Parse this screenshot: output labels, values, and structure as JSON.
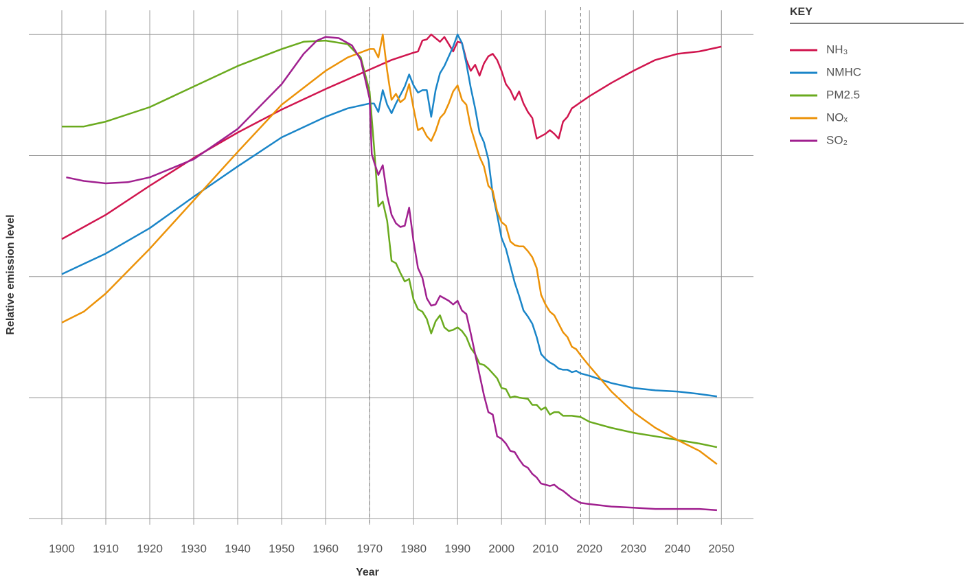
{
  "chart_data": {
    "type": "line",
    "x_label": "Year",
    "y_label": "Relative emission level",
    "legend_title": "KEY",
    "legend": "right",
    "xlim": [
      1892.5,
      2057.3
    ],
    "ylim": [
      -0.05,
      4.2
    ],
    "xticks": [
      1900,
      1910,
      1920,
      1930,
      1940,
      1950,
      1960,
      1970,
      1980,
      1990,
      2000,
      2010,
      2020,
      2030,
      2040,
      2050
    ],
    "yticks": [
      0,
      1,
      2,
      3,
      4
    ],
    "grid": true,
    "reference_lines": [
      1970,
      2018
    ],
    "series": [
      {
        "name": "NH₃",
        "color": "#d0154e",
        "x": [
          1900,
          1910,
          1920,
          1930,
          1940,
          1950,
          1960,
          1970,
          1975,
          1980,
          1981,
          1982,
          1983,
          1984,
          1985,
          1986,
          1987,
          1988,
          1989,
          1990,
          1991,
          1992,
          1993,
          1994,
          1995,
          1996,
          1997,
          1998,
          1999,
          2000,
          2001,
          2002,
          2003,
          2004,
          2005,
          2006,
          2007,
          2008,
          2009,
          2010,
          2011,
          2012,
          2013,
          2014,
          2015,
          2016,
          2018,
          2020,
          2025,
          2030,
          2035,
          2040,
          2045,
          2050
        ],
        "values": [
          2.31,
          2.51,
          2.75,
          2.98,
          3.19,
          3.38,
          3.55,
          3.71,
          3.79,
          3.85,
          3.86,
          3.95,
          3.96,
          4.0,
          3.97,
          3.94,
          3.98,
          3.92,
          3.86,
          3.94,
          3.93,
          3.79,
          3.7,
          3.75,
          3.66,
          3.76,
          3.82,
          3.84,
          3.79,
          3.7,
          3.59,
          3.54,
          3.46,
          3.53,
          3.43,
          3.36,
          3.31,
          3.14,
          3.16,
          3.18,
          3.21,
          3.18,
          3.14,
          3.28,
          3.32,
          3.39,
          3.44,
          3.49,
          3.6,
          3.7,
          3.79,
          3.84,
          3.86,
          3.9
        ]
      },
      {
        "name": "NMHC",
        "color": "#1a85c8",
        "x": [
          1900,
          1910,
          1920,
          1930,
          1940,
          1950,
          1960,
          1965,
          1970,
          1971,
          1972,
          1973,
          1974,
          1975,
          1976,
          1977,
          1978,
          1979,
          1980,
          1981,
          1982,
          1983,
          1984,
          1985,
          1986,
          1987,
          1988,
          1989,
          1990,
          1991,
          1992,
          1993,
          1994,
          1995,
          1996,
          1997,
          1998,
          1999,
          2000,
          2001,
          2002,
          2003,
          2004,
          2005,
          2006,
          2007,
          2008,
          2009,
          2010,
          2011,
          2012,
          2013,
          2014,
          2015,
          2016,
          2017,
          2018,
          2020,
          2025,
          2030,
          2035,
          2040,
          2045,
          2049
        ],
        "values": [
          2.02,
          2.19,
          2.4,
          2.66,
          2.91,
          3.15,
          3.32,
          3.39,
          3.43,
          3.43,
          3.36,
          3.54,
          3.42,
          3.35,
          3.43,
          3.5,
          3.57,
          3.67,
          3.58,
          3.52,
          3.54,
          3.54,
          3.32,
          3.54,
          3.68,
          3.74,
          3.82,
          3.9,
          4.0,
          3.93,
          3.76,
          3.56,
          3.39,
          3.19,
          3.11,
          2.97,
          2.68,
          2.51,
          2.32,
          2.23,
          2.09,
          1.95,
          1.84,
          1.72,
          1.67,
          1.61,
          1.5,
          1.36,
          1.32,
          1.29,
          1.27,
          1.24,
          1.23,
          1.23,
          1.21,
          1.22,
          1.2,
          1.18,
          1.12,
          1.08,
          1.06,
          1.05,
          1.03,
          1.01
        ]
      },
      {
        "name": "PM2.5",
        "color": "#6aaa1e",
        "x": [
          1900,
          1905,
          1910,
          1920,
          1930,
          1940,
          1950,
          1955,
          1960,
          1965,
          1968,
          1970,
          1971,
          1972,
          1973,
          1974,
          1975,
          1976,
          1977,
          1978,
          1979,
          1980,
          1981,
          1982,
          1983,
          1984,
          1985,
          1986,
          1987,
          1988,
          1989,
          1990,
          1991,
          1992,
          1993,
          1994,
          1995,
          1996,
          1997,
          1998,
          1999,
          2000,
          2001,
          2002,
          2003,
          2004,
          2006,
          2007,
          2008,
          2009,
          2010,
          2011,
          2012,
          2013,
          2014,
          2016,
          2018,
          2020,
          2025,
          2030,
          2035,
          2040,
          2045,
          2049
        ],
        "values": [
          3.24,
          3.24,
          3.28,
          3.4,
          3.57,
          3.74,
          3.88,
          3.94,
          3.95,
          3.92,
          3.81,
          3.53,
          3.08,
          2.58,
          2.62,
          2.46,
          2.13,
          2.11,
          2.03,
          1.96,
          1.98,
          1.81,
          1.73,
          1.71,
          1.65,
          1.53,
          1.63,
          1.68,
          1.58,
          1.55,
          1.56,
          1.58,
          1.55,
          1.5,
          1.41,
          1.36,
          1.28,
          1.27,
          1.24,
          1.2,
          1.16,
          1.08,
          1.07,
          1.0,
          1.01,
          1.0,
          0.99,
          0.94,
          0.94,
          0.9,
          0.92,
          0.86,
          0.88,
          0.88,
          0.85,
          0.85,
          0.84,
          0.8,
          0.75,
          0.71,
          0.68,
          0.65,
          0.62,
          0.59
        ]
      },
      {
        "name": "NOₓ",
        "color": "#ec9208",
        "x": [
          1900,
          1905,
          1910,
          1920,
          1930,
          1940,
          1950,
          1960,
          1965,
          1970,
          1971,
          1972,
          1973,
          1974,
          1975,
          1976,
          1977,
          1978,
          1979,
          1980,
          1981,
          1982,
          1983,
          1984,
          1985,
          1986,
          1987,
          1988,
          1989,
          1990,
          1991,
          1992,
          1993,
          1994,
          1995,
          1996,
          1997,
          1998,
          1999,
          2000,
          2001,
          2002,
          2003,
          2004,
          2005,
          2006,
          2007,
          2008,
          2009,
          2010,
          2011,
          2012,
          2013,
          2014,
          2015,
          2016,
          2017,
          2018,
          2020,
          2025,
          2030,
          2035,
          2040,
          2045,
          2049
        ],
        "values": [
          1.62,
          1.71,
          1.86,
          2.23,
          2.63,
          3.03,
          3.42,
          3.7,
          3.81,
          3.88,
          3.88,
          3.81,
          4.0,
          3.7,
          3.46,
          3.51,
          3.44,
          3.47,
          3.59,
          3.39,
          3.21,
          3.23,
          3.16,
          3.12,
          3.2,
          3.31,
          3.35,
          3.43,
          3.53,
          3.58,
          3.46,
          3.42,
          3.23,
          3.11,
          2.99,
          2.91,
          2.75,
          2.71,
          2.54,
          2.45,
          2.42,
          2.29,
          2.26,
          2.25,
          2.25,
          2.21,
          2.16,
          2.07,
          1.85,
          1.77,
          1.71,
          1.68,
          1.61,
          1.54,
          1.5,
          1.42,
          1.4,
          1.35,
          1.26,
          1.05,
          0.88,
          0.75,
          0.65,
          0.56,
          0.45
        ]
      },
      {
        "name": "SO₂",
        "color": "#a0208f",
        "x": [
          1901,
          1905,
          1910,
          1915,
          1920,
          1930,
          1940,
          1950,
          1955,
          1958,
          1960,
          1963,
          1966,
          1968,
          1970,
          1970.5,
          1971,
          1972,
          1973,
          1974,
          1975,
          1976,
          1977,
          1978,
          1979,
          1980,
          1981,
          1982,
          1983,
          1984,
          1985,
          1986,
          1987,
          1988,
          1989,
          1990,
          1991,
          1992,
          1993,
          1994,
          1995,
          1996,
          1997,
          1998,
          1999,
          2000,
          2001,
          2002,
          2003,
          2004,
          2005,
          2006,
          2007,
          2008,
          2009,
          2010,
          2011,
          2012,
          2013,
          2014,
          2015,
          2016,
          2018,
          2020,
          2025,
          2030,
          2035,
          2040,
          2045,
          2049
        ],
        "values": [
          2.82,
          2.79,
          2.77,
          2.78,
          2.82,
          2.97,
          3.22,
          3.59,
          3.84,
          3.95,
          3.98,
          3.97,
          3.91,
          3.79,
          3.47,
          3.01,
          2.95,
          2.84,
          2.92,
          2.67,
          2.51,
          2.44,
          2.41,
          2.42,
          2.57,
          2.29,
          2.07,
          1.99,
          1.82,
          1.76,
          1.77,
          1.84,
          1.82,
          1.8,
          1.77,
          1.8,
          1.72,
          1.69,
          1.53,
          1.36,
          1.19,
          1.02,
          0.88,
          0.86,
          0.68,
          0.66,
          0.62,
          0.56,
          0.55,
          0.49,
          0.44,
          0.42,
          0.37,
          0.34,
          0.29,
          0.28,
          0.27,
          0.28,
          0.25,
          0.23,
          0.2,
          0.17,
          0.13,
          0.12,
          0.1,
          0.09,
          0.08,
          0.08,
          0.08,
          0.07
        ]
      }
    ]
  }
}
